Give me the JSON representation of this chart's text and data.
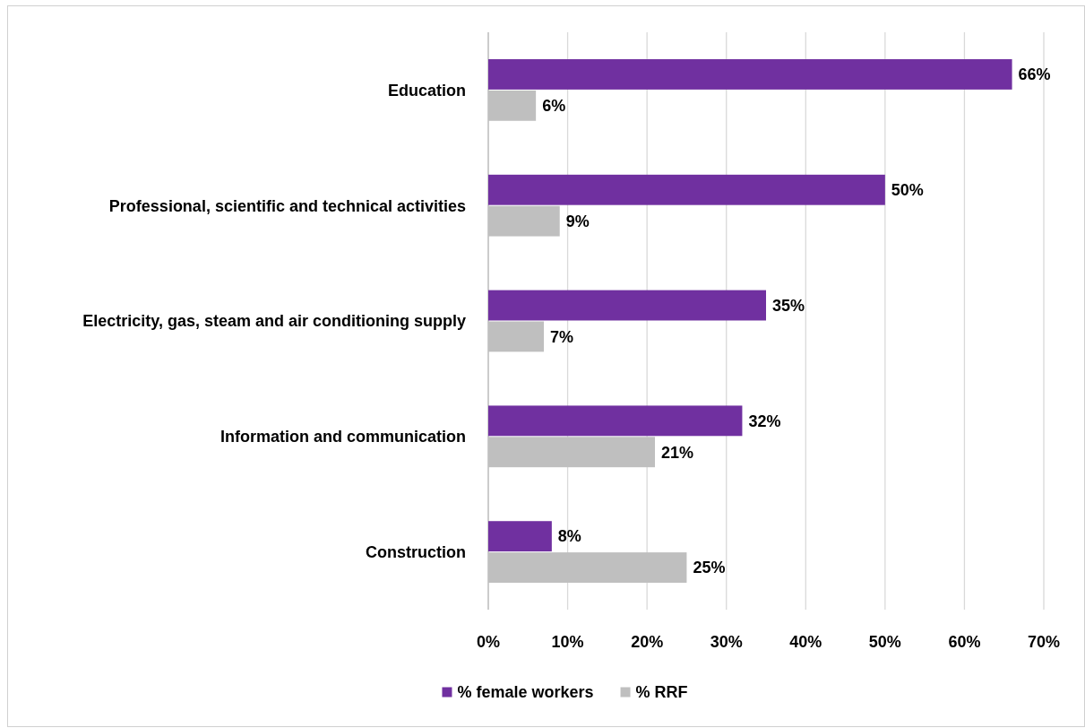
{
  "chart_data": {
    "type": "bar",
    "orientation": "horizontal",
    "categories": [
      "Education",
      "Professional, scientific and technical activities",
      "Electricity, gas, steam and air conditioning supply",
      "Information and communication",
      "Construction"
    ],
    "series": [
      {
        "name": "% female workers",
        "color": "#7030a0",
        "values": [
          66,
          50,
          35,
          32,
          8
        ],
        "value_labels": [
          "66%",
          "50%",
          "35%",
          "32%",
          "8%"
        ]
      },
      {
        "name": "% RRF",
        "color": "#bfbfbf",
        "values": [
          6,
          9,
          7,
          21,
          25
        ],
        "value_labels": [
          "6%",
          "9%",
          "7%",
          "21%",
          "25%"
        ]
      }
    ],
    "xlim": [
      0,
      70
    ],
    "xticks": [
      {
        "value": 0,
        "label": "0%"
      },
      {
        "value": 10,
        "label": "10%"
      },
      {
        "value": 20,
        "label": "20%"
      },
      {
        "value": 30,
        "label": "30%"
      },
      {
        "value": 40,
        "label": "40%"
      },
      {
        "value": 50,
        "label": "50%"
      },
      {
        "value": 60,
        "label": "60%"
      },
      {
        "value": 70,
        "label": "70%"
      }
    ],
    "grid": "x",
    "legend": "bottom"
  }
}
